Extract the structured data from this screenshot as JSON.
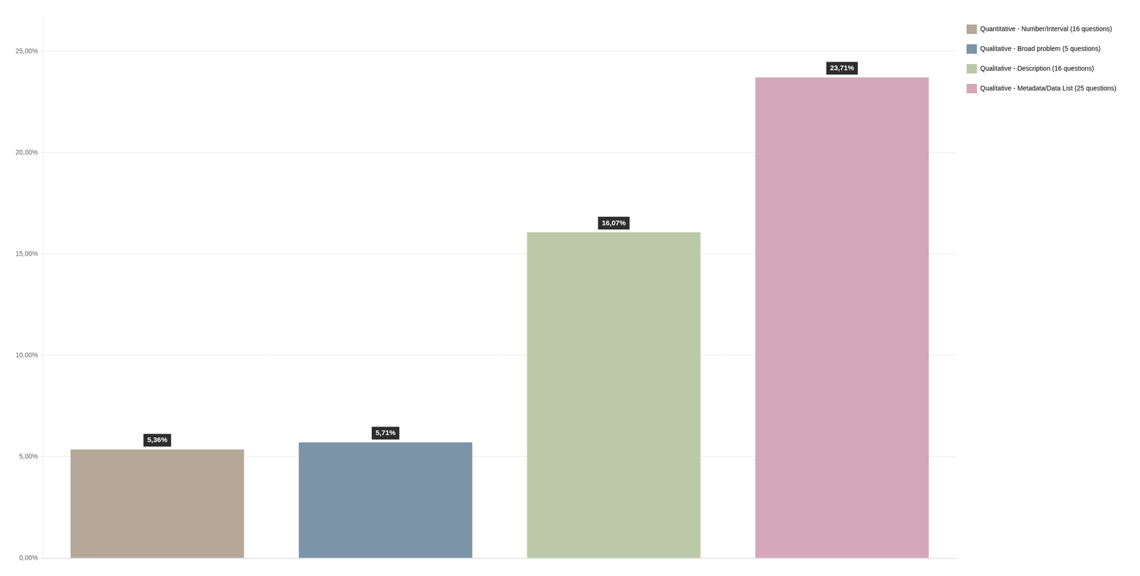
{
  "chart_data": {
    "type": "bar",
    "categories": [
      "Quantitative - Number/Interval (16 questions)",
      "Qualitative - Broad problem (5 questions)",
      "Qualitative - Description (16 questions)",
      "Qualitative - Metadata/Data List (25 questions)"
    ],
    "values": [
      0.0536,
      0.0571,
      0.1607,
      0.2371
    ],
    "value_labels": [
      "5,36%",
      "5,71%",
      "16,07%",
      "23,71%"
    ],
    "colors": [
      "#b5a898",
      "#7b94a8",
      "#bcc9a8",
      "#d4a8b8"
    ],
    "ylim": [
      0,
      0.268
    ],
    "yticks": [
      {
        "value": 0.0,
        "label": "0,00%"
      },
      {
        "value": 0.05,
        "label": "5,00%"
      },
      {
        "value": 0.1,
        "label": "10,00%"
      },
      {
        "value": 0.15,
        "label": "15,00%"
      },
      {
        "value": 0.2,
        "label": "20,00%"
      },
      {
        "value": 0.25,
        "label": "25,00%"
      }
    ],
    "grid": true,
    "legend": "right",
    "data_labels": true,
    "tick_labels": "y"
  }
}
